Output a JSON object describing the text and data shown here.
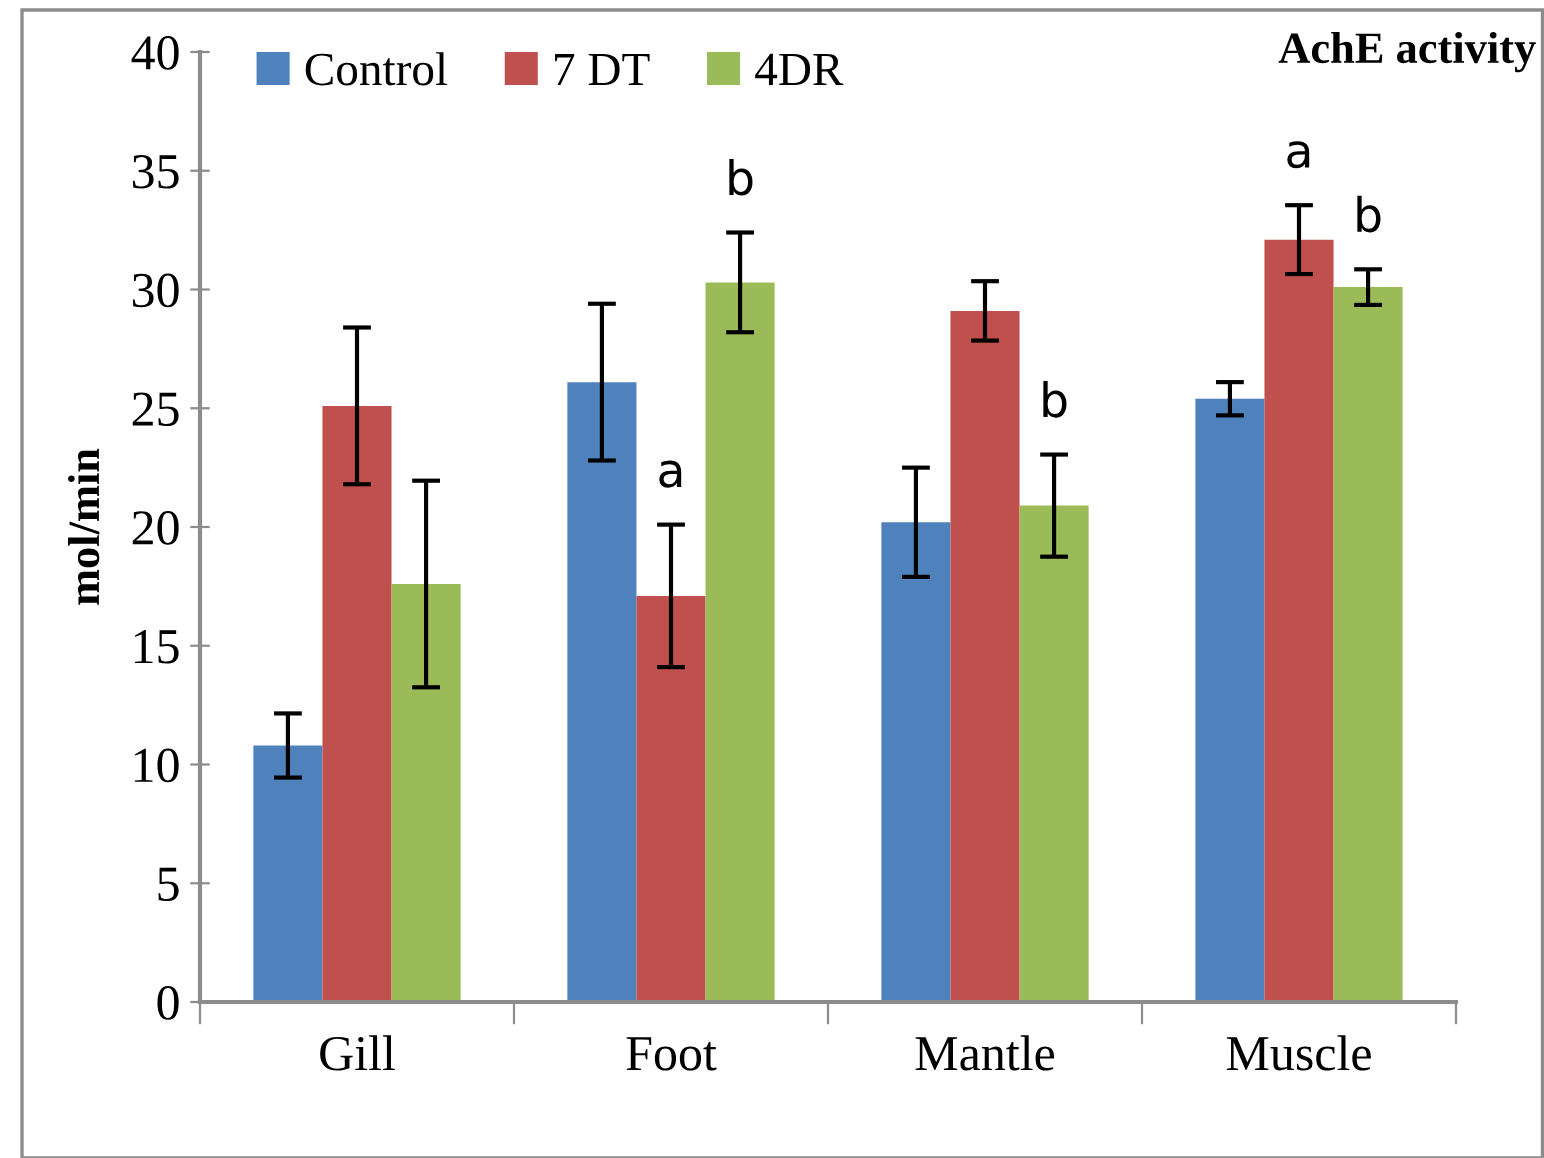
{
  "chart_data": {
    "type": "bar",
    "title": "AchE activity",
    "ylabel": "mol/min",
    "categories": [
      "Gill",
      "Foot",
      "Mantle",
      "Muscle"
    ],
    "series": [
      {
        "name": "Control",
        "color": "#4f81bd",
        "values": [
          10.8,
          26.1,
          20.2,
          25.4
        ],
        "errors": [
          1.35,
          3.3,
          2.3,
          0.7
        ]
      },
      {
        "name": "7 DT",
        "color": "#c0504d",
        "values": [
          25.1,
          17.1,
          29.1,
          32.1
        ],
        "errors": [
          3.3,
          3.0,
          1.25,
          1.45
        ],
        "value_labels": [
          null,
          "a",
          null,
          "a"
        ]
      },
      {
        "name": "4DR",
        "color": "#9bbb59",
        "values": [
          17.6,
          30.3,
          20.9,
          30.1
        ],
        "errors": [
          4.35,
          2.1,
          2.15,
          0.75
        ],
        "value_labels": [
          null,
          "b",
          "b",
          "b"
        ]
      }
    ],
    "ylim": [
      0,
      40
    ],
    "yticks": [
      0,
      5,
      10,
      15,
      20,
      25,
      30,
      35,
      40
    ],
    "grid": false,
    "legend": "top left"
  }
}
